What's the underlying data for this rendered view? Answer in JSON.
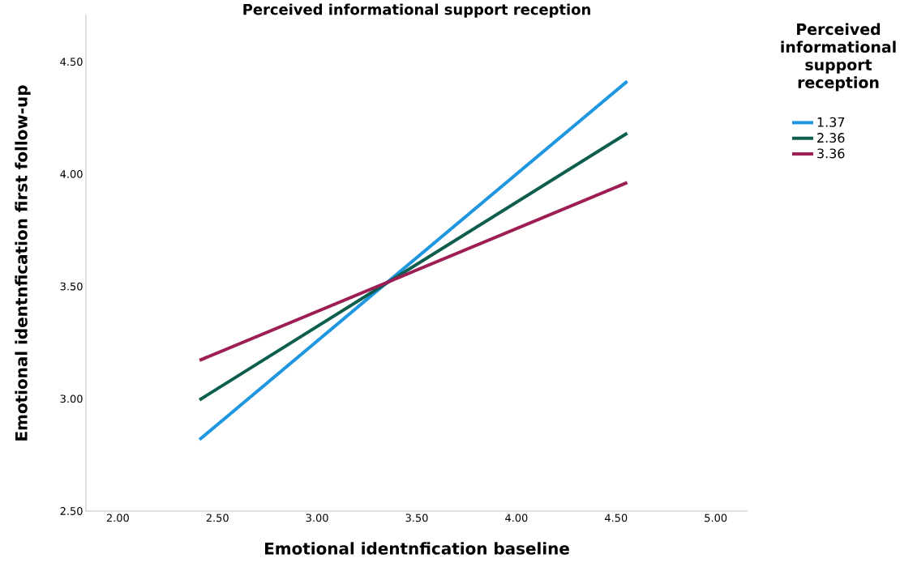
{
  "chart_data": {
    "type": "line",
    "title": "Perceived informational support reception",
    "xlabel": "Emotional identnfication baseline",
    "ylabel": "Emotional identnfication first follow-up",
    "legend_title": "Perceived informational support reception",
    "x": [
      2.41,
      4.556
    ],
    "series": [
      {
        "name": "1.37",
        "color": "#1f96e0",
        "values": [
          2.818,
          4.413
        ]
      },
      {
        "name": "2.36",
        "color": "#0e5e50",
        "values": [
          2.995,
          4.182
        ]
      },
      {
        "name": "3.36",
        "color": "#9c1e55",
        "values": [
          3.171,
          3.962
        ]
      }
    ],
    "xlim": [
      1.84,
      5.16
    ],
    "ylim": [
      2.5,
      4.71
    ],
    "xticks": [
      {
        "value": 2,
        "label": "2.00"
      },
      {
        "value": 2.5,
        "label": "2.50"
      },
      {
        "value": 3,
        "label": "3.00"
      },
      {
        "value": 3.5,
        "label": "3.50"
      },
      {
        "value": 4,
        "label": "4.00"
      },
      {
        "value": 4.5,
        "label": "4.50"
      },
      {
        "value": 5,
        "label": "5.00"
      }
    ],
    "yticks": [
      {
        "value": 2.5,
        "label": "2.50"
      },
      {
        "value": 3,
        "label": "3.00"
      },
      {
        "value": 3.5,
        "label": "3.50"
      },
      {
        "value": 4,
        "label": "4.00"
      },
      {
        "value": 4.5,
        "label": "4.50"
      }
    ],
    "legend": "top right"
  }
}
